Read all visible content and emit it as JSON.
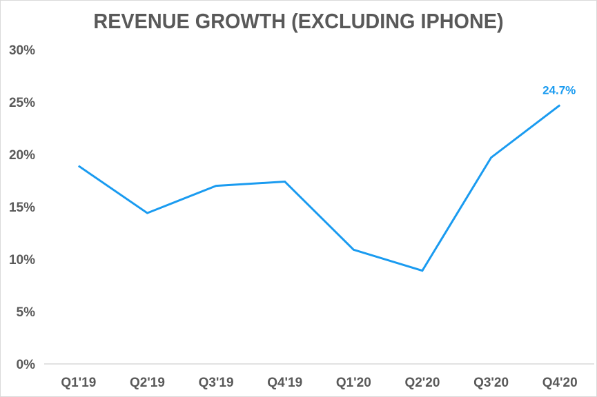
{
  "chart_data": {
    "type": "line",
    "title": "REVENUE GROWTH (EXCLUDING IPHONE)",
    "xlabel": "",
    "ylabel": "",
    "categories": [
      "Q1'19",
      "Q2'19",
      "Q3'19",
      "Q4'19",
      "Q1'20",
      "Q2'20",
      "Q3'20",
      "Q4'20"
    ],
    "series": [
      {
        "name": "Revenue growth (excluding iPhone)",
        "values": [
          18.9,
          14.4,
          17.0,
          17.4,
          10.9,
          8.9,
          19.7,
          24.7
        ],
        "color": "#1a9bf0"
      }
    ],
    "ylim": [
      0,
      30
    ],
    "yticks": [
      0,
      5,
      10,
      15,
      20,
      25,
      30
    ],
    "ytick_labels": [
      "0%",
      "5%",
      "10%",
      "15%",
      "20%",
      "25%",
      "30%"
    ],
    "grid": false,
    "legend": null,
    "annotations": [
      {
        "category": "Q4'20",
        "text": "24.7%"
      }
    ]
  },
  "colors": {
    "line": "#1a9bf0",
    "text": "#595959",
    "axis": "#d9d9d9"
  }
}
